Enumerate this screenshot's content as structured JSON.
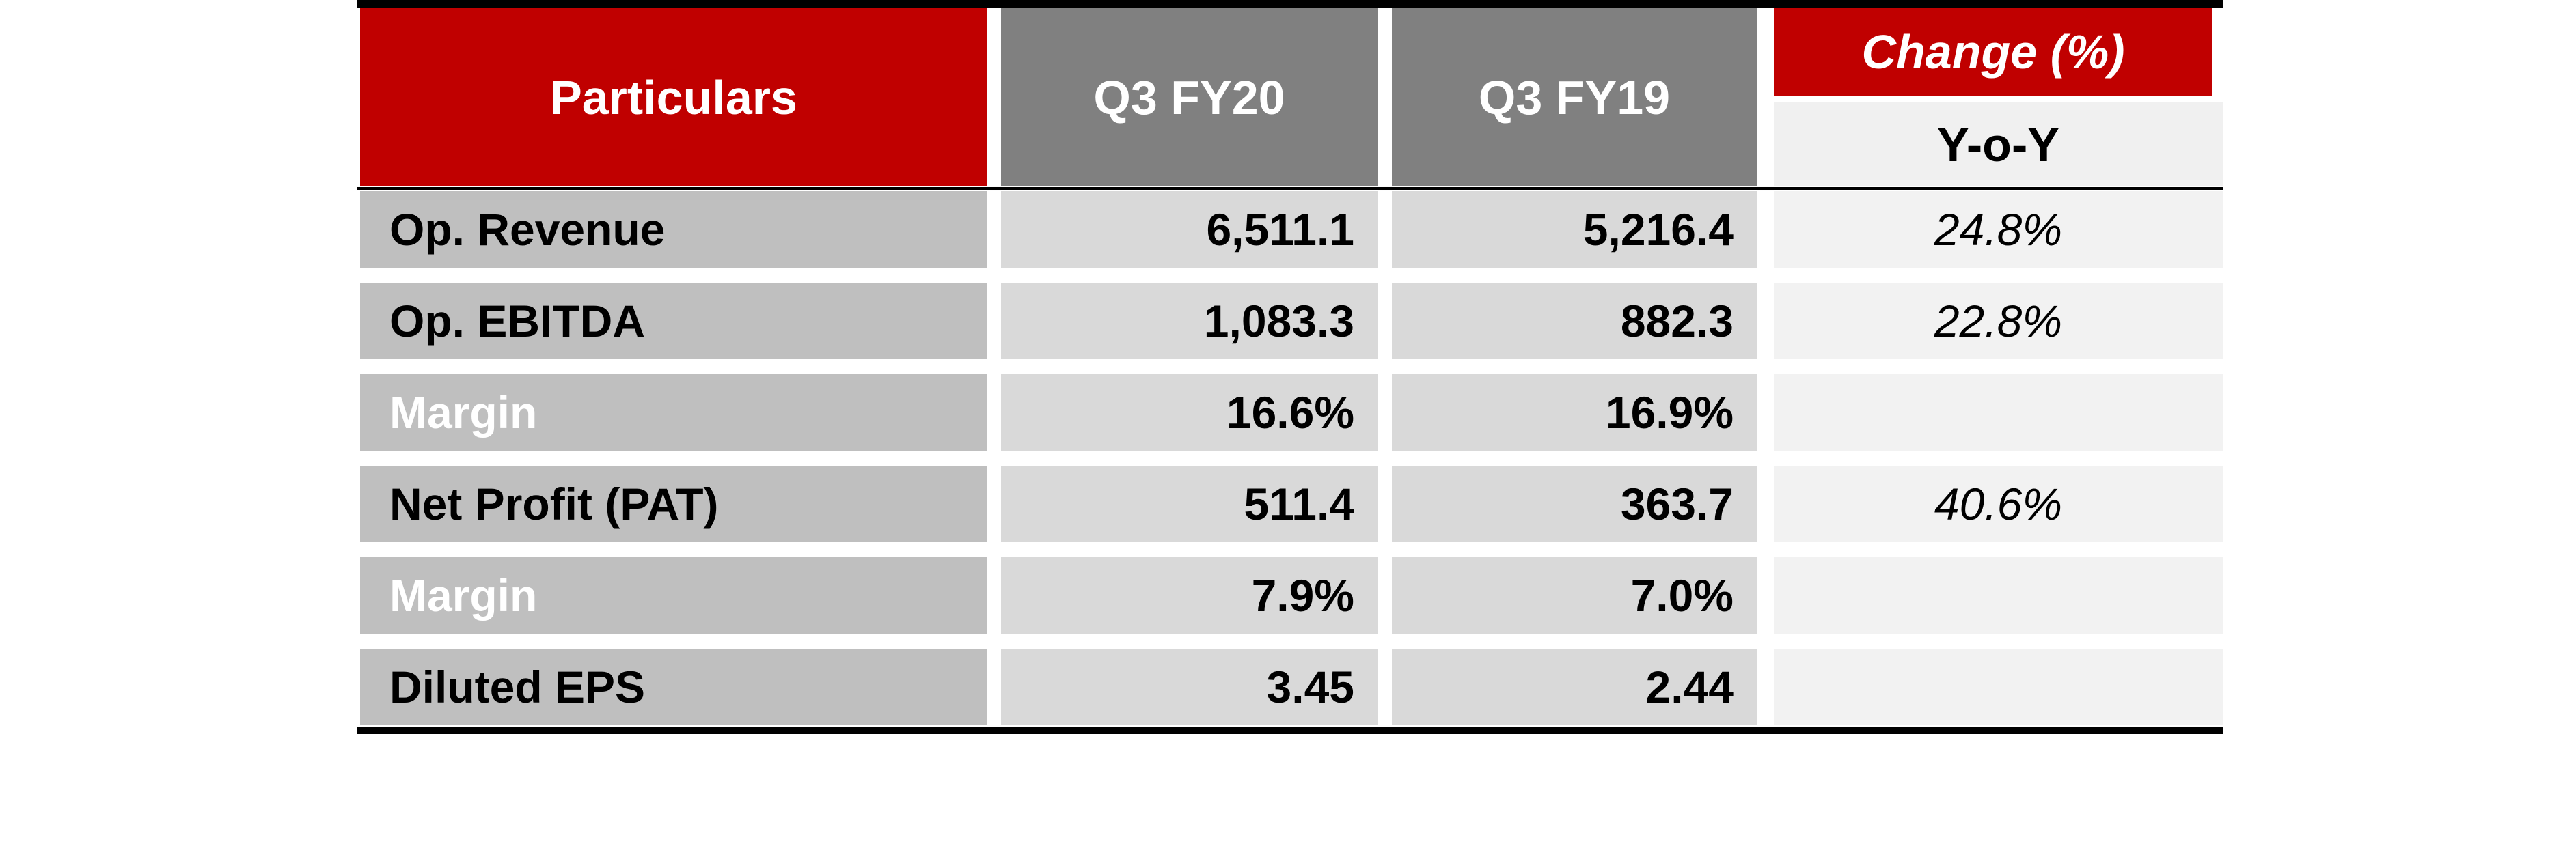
{
  "table": {
    "header": {
      "particulars": "Particulars",
      "col1": "Q3 FY20",
      "col2": "Q3 FY19",
      "change": "Change (%)",
      "subheader": "Y-o-Y"
    },
    "rows": [
      [
        "Op. Revenue",
        "6,511.1",
        "5,216.4",
        "24.8%"
      ],
      [
        "Op. EBITDA",
        "1,083.3",
        "882.3",
        "22.8%"
      ],
      [
        "Margin",
        "16.6%",
        "16.9%",
        null
      ],
      [
        "Net Profit (PAT)",
        "511.4",
        "363.7",
        "40.6%"
      ],
      [
        "Margin",
        "7.9%",
        "7.0%",
        null
      ],
      [
        "Diluted EPS",
        "3.45",
        "2.44",
        null
      ]
    ]
  }
}
